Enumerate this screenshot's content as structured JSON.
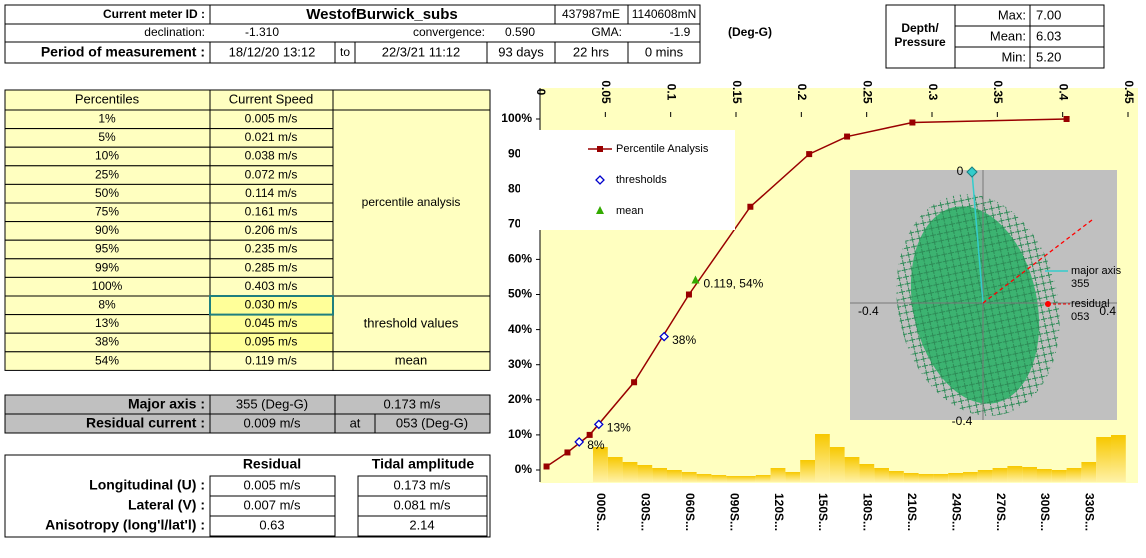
{
  "header": {
    "meter_id_label": "Current meter ID :",
    "meter_id": "WestofBurwick_subs",
    "easting": "437987mE",
    "northing": "1140608mN",
    "declination_label": "declination:",
    "declination": "-1.310",
    "convergence_label": "convergence:",
    "convergence": "0.590",
    "gma_label": "GMA:",
    "gma": "-1.9",
    "unit": "(Deg-G)",
    "period_label": "Period of measurement :",
    "start": "18/12/20 13:12",
    "to": "to",
    "end": "22/3/21 11:12",
    "days": "93 days",
    "hrs": "22 hrs",
    "mins": "0  mins"
  },
  "depth": {
    "lines": [
      "Depth/",
      "Pressure"
    ],
    "rows": [
      [
        "Max:",
        "7.00"
      ],
      [
        "Mean:",
        "6.03"
      ],
      [
        "Min:",
        "5.20"
      ]
    ]
  },
  "percentiles": {
    "headers": [
      "Percentiles",
      "Current Speed"
    ],
    "rows": [
      [
        "1%",
        "0.005 m/s"
      ],
      [
        "5%",
        "0.021 m/s"
      ],
      [
        "10%",
        "0.038 m/s"
      ],
      [
        "25%",
        "0.072 m/s"
      ],
      [
        "50%",
        "0.114 m/s"
      ],
      [
        "75%",
        "0.161 m/s"
      ],
      [
        "90%",
        "0.206 m/s"
      ],
      [
        "95%",
        "0.235 m/s"
      ],
      [
        "99%",
        "0.285 m/s"
      ],
      [
        "100%",
        "0.403 m/s"
      ],
      [
        "8%",
        "0.030 m/s"
      ],
      [
        "13%",
        "0.045 m/s"
      ],
      [
        "38%",
        "0.095 m/s"
      ],
      [
        "54%",
        "0.119 m/s"
      ]
    ],
    "notes": [
      "percentile analysis",
      "threshold values",
      "mean"
    ]
  },
  "axes": {
    "rows": [
      [
        "Major axis :",
        "355 (Deg-G)",
        "0.173 m/s"
      ],
      [
        "Residual current :",
        "0.009 m/s",
        "at",
        "053 (Deg-G)"
      ]
    ]
  },
  "components": {
    "headers": [
      "Residual",
      "Tidal amplitude"
    ],
    "rows": [
      [
        "Longitudinal (U) :",
        "0.005 m/s",
        "0.173 m/s"
      ],
      [
        "Lateral (V) :",
        "0.007 m/s",
        "0.081 m/s"
      ],
      [
        "Anisotropy (long'l/lat'l) :",
        "0.63",
        "2.14"
      ]
    ]
  },
  "chart_data": [
    {
      "type": "line",
      "xlim": [
        0,
        0.45
      ],
      "ylim": [
        0,
        100
      ],
      "xticks": [
        0,
        0.05,
        0.1,
        0.15,
        0.2,
        0.25,
        0.3,
        0.35,
        0.4,
        0.45
      ],
      "yticks": [
        {
          "value": 0,
          "label": "0%"
        },
        {
          "value": 10,
          "label": "10%"
        },
        {
          "value": 20,
          "label": "20%"
        },
        {
          "value": 30,
          "label": "30%"
        },
        {
          "value": 40,
          "label": "40%"
        },
        {
          "value": 50,
          "label": "50%"
        },
        {
          "value": 60,
          "label": "60%"
        },
        {
          "value": 70,
          "label": "70%"
        },
        {
          "value": 80,
          "label": "80%"
        },
        {
          "value": 90,
          "label": "90%"
        },
        {
          "value": 100,
          "label": "100%"
        }
      ],
      "series": [
        {
          "name": "Percentile Analysis",
          "color": "#990000",
          "x": [
            0.005,
            0.021,
            0.038,
            0.072,
            0.114,
            0.161,
            0.206,
            0.235,
            0.285,
            0.403
          ],
          "values": [
            1,
            5,
            10,
            25,
            50,
            75,
            90,
            95,
            99,
            100
          ]
        },
        {
          "name": "thresholds",
          "color": "#0000cc",
          "x": [
            0.03,
            0.045,
            0.095
          ],
          "values": [
            8,
            13,
            38
          ],
          "value_labels": [
            "8%",
            "13%",
            "38%"
          ]
        },
        {
          "name": "mean",
          "color": "#33aa00",
          "x": [
            0.119
          ],
          "values": [
            54
          ],
          "value_labels": [
            "0.119, 54%"
          ]
        }
      ]
    },
    {
      "type": "bar",
      "color": "#f7c800",
      "categories": [
        "000S...",
        null,
        null,
        "030S...",
        null,
        null,
        "060S...",
        null,
        null,
        "090S...",
        null,
        null,
        "120S...",
        null,
        null,
        "150S...",
        null,
        null,
        "180S...",
        null,
        null,
        "210S...",
        null,
        null,
        "240S...",
        null,
        null,
        "270S...",
        null,
        null,
        "300S...",
        null,
        null,
        "330S...",
        null,
        null
      ],
      "values": [
        35,
        25,
        20,
        17,
        14,
        12,
        10,
        8,
        7,
        6,
        6,
        7,
        14,
        10,
        22,
        48,
        35,
        25,
        18,
        14,
        11,
        9,
        8,
        8,
        9,
        10,
        12,
        14,
        16,
        15,
        13,
        12,
        14,
        20,
        45,
        47
      ]
    }
  ],
  "inset": {
    "top": "0",
    "left": "-0.4",
    "right": "0.4",
    "bottom": "-0.4",
    "major": [
      "major axis",
      "355"
    ],
    "residual": [
      "residual",
      "053"
    ]
  }
}
